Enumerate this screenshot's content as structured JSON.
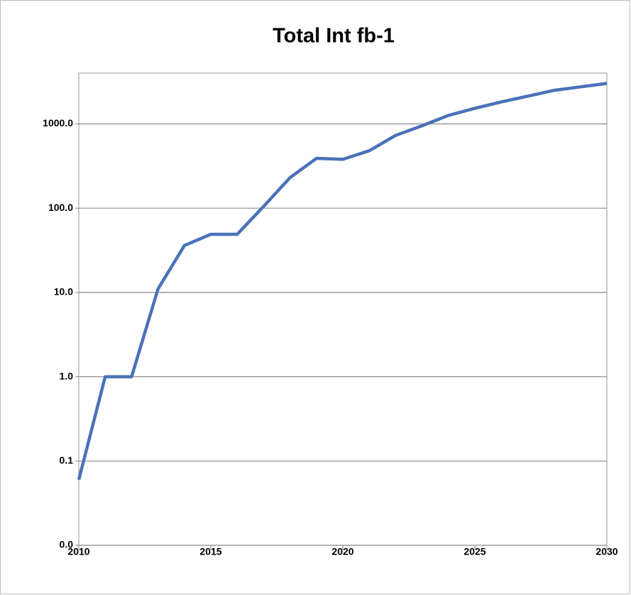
{
  "chart_data": {
    "type": "line",
    "title": "Total Int fb-1",
    "x": [
      2010,
      2011,
      2012,
      2013,
      2014,
      2015,
      2016,
      2017,
      2018,
      2019,
      2020,
      2021,
      2022,
      2023,
      2024,
      2025,
      2026,
      2027,
      2028,
      2029,
      2030
    ],
    "series": [
      {
        "color": "#4a72b8",
        "values": [
          0.06,
          1,
          1,
          11,
          36,
          49,
          49,
          105,
          230,
          390,
          380,
          480,
          730,
          950,
          1260,
          1530,
          1820,
          2130,
          2500,
          2750,
          3020
        ]
      }
    ],
    "xlim": [
      2010,
      2030
    ],
    "xticks": [
      2010,
      2015,
      2020,
      2025,
      2030
    ],
    "ylim": [
      0.01,
      4000
    ],
    "log_y": true,
    "yticks": [
      {
        "value": 0.01,
        "label": "0.0"
      },
      0.1,
      {
        "value": 1,
        "label": "1.0"
      },
      {
        "value": 10,
        "label": "10.0"
      },
      {
        "value": 100,
        "label": "100.0"
      },
      {
        "value": 1000,
        "label": "1000.0"
      }
    ],
    "grid": true
  }
}
